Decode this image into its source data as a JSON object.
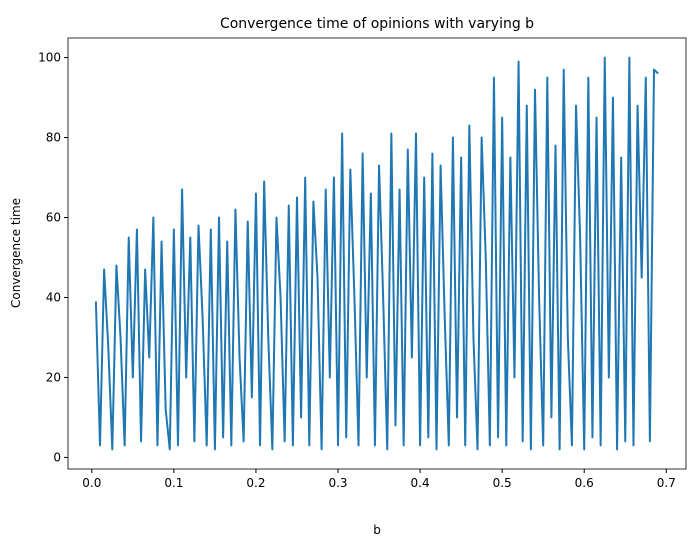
{
  "chart_data": {
    "type": "line",
    "title": "Convergence time of opinions with varying b",
    "xlabel": "b",
    "ylabel": "Convergence time",
    "color": "#1f77b4",
    "x": [
      0.005,
      0.01,
      0.015,
      0.02,
      0.025,
      0.03,
      0.035,
      0.04,
      0.045,
      0.05,
      0.055,
      0.06,
      0.065,
      0.07,
      0.075,
      0.08,
      0.085,
      0.09,
      0.095,
      0.1,
      0.105,
      0.11,
      0.115,
      0.12,
      0.125,
      0.13,
      0.135,
      0.14,
      0.145,
      0.15,
      0.155,
      0.16,
      0.165,
      0.17,
      0.175,
      0.18,
      0.185,
      0.19,
      0.195,
      0.2,
      0.205,
      0.21,
      0.215,
      0.22,
      0.225,
      0.23,
      0.235,
      0.24,
      0.245,
      0.25,
      0.255,
      0.26,
      0.265,
      0.27,
      0.275,
      0.28,
      0.285,
      0.29,
      0.295,
      0.3,
      0.305,
      0.31,
      0.315,
      0.32,
      0.325,
      0.33,
      0.335,
      0.34,
      0.345,
      0.35,
      0.355,
      0.36,
      0.365,
      0.37,
      0.375,
      0.38,
      0.385,
      0.39,
      0.395,
      0.4,
      0.405,
      0.41,
      0.415,
      0.42,
      0.425,
      0.43,
      0.435,
      0.44,
      0.445,
      0.45,
      0.455,
      0.46,
      0.465,
      0.47,
      0.475,
      0.48,
      0.485,
      0.49,
      0.495,
      0.5,
      0.505,
      0.51,
      0.515,
      0.52,
      0.525,
      0.53,
      0.535,
      0.54,
      0.545,
      0.55,
      0.555,
      0.56,
      0.565,
      0.57,
      0.575,
      0.58,
      0.585,
      0.59,
      0.595,
      0.6,
      0.605,
      0.61,
      0.615,
      0.62,
      0.625,
      0.63,
      0.635,
      0.64,
      0.645,
      0.65,
      0.655,
      0.66,
      0.665,
      0.67,
      0.675,
      0.68,
      0.685,
      0.69
    ],
    "values": [
      39,
      3,
      47,
      28,
      2,
      48,
      30,
      3,
      55,
      20,
      57,
      4,
      47,
      25,
      60,
      3,
      54,
      12,
      2,
      57,
      3,
      67,
      20,
      55,
      4,
      58,
      35,
      3,
      57,
      2,
      60,
      5,
      54,
      3,
      62,
      25,
      4,
      59,
      15,
      66,
      3,
      69,
      30,
      2,
      60,
      40,
      4,
      63,
      3,
      65,
      10,
      70,
      3,
      64,
      45,
      2,
      67,
      20,
      70,
      3,
      81,
      5,
      72,
      40,
      3,
      76,
      20,
      66,
      3,
      73,
      40,
      2,
      81,
      8,
      67,
      3,
      77,
      25,
      81,
      3,
      70,
      5,
      76,
      2,
      73,
      35,
      3,
      80,
      10,
      75,
      3,
      83,
      30,
      2,
      80,
      50,
      3,
      95,
      5,
      85,
      3,
      75,
      20,
      99,
      4,
      88,
      2,
      92,
      40,
      3,
      95,
      10,
      78,
      2,
      97,
      30,
      3,
      88,
      55,
      2,
      95,
      5,
      85,
      3,
      100,
      20,
      90,
      2,
      75,
      4,
      100,
      3,
      88,
      45,
      95,
      4,
      97,
      96
    ],
    "xlim": [
      -0.029,
      0.724
    ],
    "ylim": [
      -2.9,
      104.9
    ],
    "xticks": [
      {
        "value": 0,
        "label": "0.0"
      },
      0.1,
      0.2,
      0.3,
      0.4,
      0.5,
      0.6,
      0.7
    ],
    "yticks": [
      0,
      20,
      40,
      60,
      80,
      100
    ]
  }
}
